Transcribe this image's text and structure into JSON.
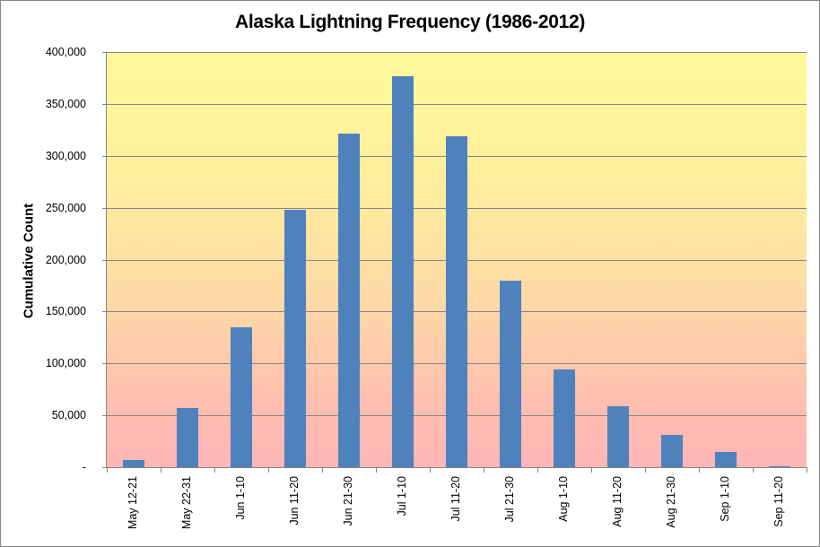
{
  "chart_data": {
    "type": "bar",
    "title": "Alaska Lightning Frequency (1986-2012)",
    "xlabel": "",
    "ylabel": "Cumulative Count",
    "ylim": [
      0,
      400000
    ],
    "yticks": [
      0,
      50000,
      100000,
      150000,
      200000,
      250000,
      300000,
      350000,
      400000
    ],
    "ytick_labels": [
      "-",
      "50,000",
      "100,000",
      "150,000",
      "200,000",
      "250,000",
      "300,000",
      "350,000",
      "400,000"
    ],
    "grid": true,
    "legend": null,
    "bar_color": "#4f81bd",
    "categories": [
      "May 12-21",
      "May 22-31",
      "Jun 1-10",
      "Jun 11-20",
      "Jun 21-30",
      "Jul 1-10",
      "Jul 11-20",
      "Jul 21-30",
      "Aug 1-10",
      "Aug 11-20",
      "Aug 21-30",
      "Sep 1-10",
      "Sep 11-20"
    ],
    "values": [
      7200,
      57000,
      135000,
      248000,
      321000,
      377000,
      319000,
      180000,
      94000,
      58500,
      31000,
      14700,
      1100
    ]
  }
}
